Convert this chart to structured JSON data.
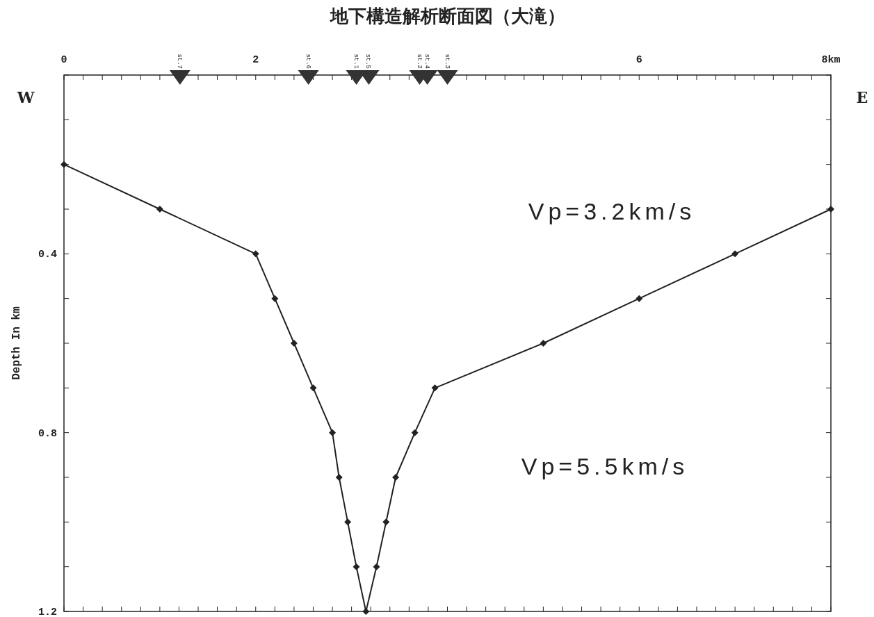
{
  "chart_data": {
    "type": "line",
    "title": "地下構造解析断面図（大滝）",
    "ylabel": "Depth In km",
    "xlim": [
      0,
      8
    ],
    "ylim": [
      1.2,
      0
    ],
    "xticks": [
      0,
      {
        "value": 0.2,
        "label": null
      },
      {
        "value": 0.4,
        "label": null
      },
      {
        "value": 0.6,
        "label": null
      },
      {
        "value": 0.8,
        "label": null
      },
      {
        "value": 1,
        "label": null
      },
      {
        "value": 1.2,
        "label": null
      },
      {
        "value": 1.4,
        "label": null
      },
      {
        "value": 1.6,
        "label": null
      },
      {
        "value": 1.8,
        "label": null
      },
      2,
      {
        "value": 2.2,
        "label": null
      },
      {
        "value": 2.4,
        "label": null
      },
      {
        "value": 2.6,
        "label": null
      },
      {
        "value": 2.8,
        "label": null
      },
      {
        "value": 3,
        "label": null
      },
      {
        "value": 3.2,
        "label": null
      },
      {
        "value": 3.4,
        "label": null
      },
      {
        "value": 3.6,
        "label": null
      },
      {
        "value": 3.8,
        "label": null
      },
      {
        "value": 4,
        "label": null
      },
      {
        "value": 4.2,
        "label": null
      },
      {
        "value": 4.4,
        "label": null
      },
      {
        "value": 4.6,
        "label": null
      },
      {
        "value": 4.8,
        "label": null
      },
      {
        "value": 5,
        "label": null
      },
      {
        "value": 5.2,
        "label": null
      },
      {
        "value": 5.4,
        "label": null
      },
      {
        "value": 5.6,
        "label": null
      },
      {
        "value": 5.8,
        "label": null
      },
      6,
      {
        "value": 6.2,
        "label": null
      },
      {
        "value": 6.4,
        "label": null
      },
      {
        "value": 6.6,
        "label": null
      },
      {
        "value": 6.8,
        "label": null
      },
      {
        "value": 7,
        "label": null
      },
      {
        "value": 7.2,
        "label": null
      },
      {
        "value": 7.4,
        "label": null
      },
      {
        "value": 7.6,
        "label": null
      },
      {
        "value": 7.8,
        "label": null
      },
      {
        "value": 8,
        "label": "8km"
      }
    ],
    "yticks": [
      {
        "value": 0,
        "label": null
      },
      {
        "value": 0.1,
        "label": null
      },
      {
        "value": 0.2,
        "label": null
      },
      {
        "value": 0.3,
        "label": null
      },
      0.4,
      {
        "value": 0.5,
        "label": null
      },
      {
        "value": 0.6,
        "label": null
      },
      {
        "value": 0.7,
        "label": null
      },
      0.8,
      {
        "value": 0.9,
        "label": null
      },
      {
        "value": 1,
        "label": null
      },
      {
        "value": 1.1,
        "label": null
      },
      1.2
    ],
    "grid": false,
    "series": [
      {
        "color": "#222222",
        "marker": "diamond",
        "line_style": "solid",
        "x": [
          0,
          1,
          2,
          2.2,
          2.4,
          2.6,
          2.8,
          2.87,
          2.96,
          3.05,
          3.15,
          3.26,
          3.36,
          3.46,
          3.66,
          3.87,
          5,
          6,
          7,
          8
        ],
        "values": [
          0.2,
          0.3,
          0.4,
          0.5,
          0.6,
          0.7,
          0.8,
          0.9,
          1.0,
          1.1,
          1.2,
          1.1,
          1.0,
          0.9,
          0.8,
          0.7,
          0.6,
          0.5,
          0.4,
          0.3
        ]
      },
      {
        "type": "scatter",
        "color": "#333333",
        "marker": "triangle",
        "x": [
          1.21,
          2.55,
          3.05,
          3.18,
          3.71,
          3.79,
          4.0
        ],
        "values": [
          0,
          0,
          0,
          0,
          0,
          0,
          0
        ]
      }
    ],
    "annotations": [
      {
        "text": "st.7",
        "x": 1.21,
        "y": 0
      },
      {
        "text": "st.6",
        "x": 2.55,
        "y": 0
      },
      {
        "text": "st.1",
        "x": 3.05,
        "y": 0
      },
      {
        "text": "st.5",
        "x": 3.18,
        "y": 0
      },
      {
        "text": "st.2",
        "x": 3.71,
        "y": 0
      },
      {
        "text": "st.4",
        "x": 3.79,
        "y": 0
      },
      {
        "text": "st.3",
        "x": 4.0,
        "y": 0
      },
      "Vp=3.2km/s",
      "Vp=5.5km/s",
      "W",
      "E"
    ]
  }
}
